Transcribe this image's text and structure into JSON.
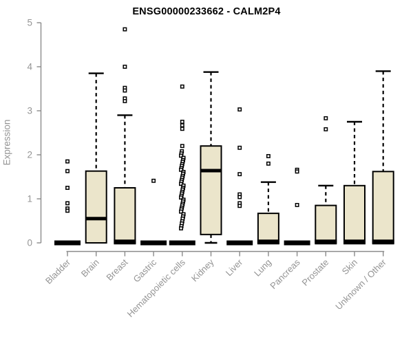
{
  "title": "ENSG00000233662 - CALM2P4",
  "y_axis": {
    "label": "Expression",
    "tick_labels": [
      "0",
      "1",
      "2",
      "3",
      "4",
      "5"
    ]
  },
  "chart_data": {
    "type": "boxplot",
    "title": "ENSG00000233662 - CALM2P4",
    "xlabel": "",
    "ylabel": "Expression",
    "ylim": [
      0,
      5
    ],
    "yticks": [
      0,
      1,
      2,
      3,
      4,
      5
    ],
    "grid": false,
    "legend": false,
    "x_tick_rotation": -45,
    "categories": [
      "Bladder",
      "Brain",
      "Breast",
      "Gastric",
      "Hematopoietic cells",
      "Kidney",
      "Liver",
      "Lung",
      "Pancreas",
      "Prostate",
      "Skin",
      "Unknown / Other"
    ],
    "boxes": [
      {
        "category": "Bladder",
        "q1": 0,
        "median": 0,
        "q3": 0,
        "whisker_low": 0,
        "whisker_high": 0,
        "outliers": [
          1.85,
          1.63,
          1.25,
          0.9,
          0.78,
          0.73
        ]
      },
      {
        "category": "Brain",
        "q1": 0,
        "median": 0.55,
        "q3": 1.63,
        "whisker_low": 0,
        "whisker_high": 3.85,
        "outliers": []
      },
      {
        "category": "Breast",
        "q1": 0,
        "median": 0.02,
        "q3": 1.25,
        "whisker_low": 0,
        "whisker_high": 2.9,
        "outliers": [
          4.85,
          4.0,
          3.52,
          3.46,
          3.28,
          3.22
        ]
      },
      {
        "category": "Gastric",
        "q1": 0,
        "median": 0,
        "q3": 0,
        "whisker_low": 0,
        "whisker_high": 0,
        "outliers": [
          1.41
        ]
      },
      {
        "category": "Hematopoietic cells",
        "q1": 0,
        "median": 0,
        "q3": 0,
        "whisker_low": 0,
        "whisker_high": 0,
        "outliers": [
          3.55,
          2.75,
          2.67,
          2.59,
          2.2,
          2.08,
          2.03,
          1.98,
          1.93,
          1.88,
          1.84,
          1.79,
          1.75,
          1.7,
          1.66,
          1.61,
          1.57,
          1.52,
          1.48,
          1.43,
          1.39,
          1.34,
          1.3,
          1.25,
          1.21,
          1.16,
          1.12,
          1.07,
          1.03,
          0.98,
          0.94,
          0.89,
          0.85,
          0.8,
          0.76,
          0.71,
          0.65,
          0.6,
          0.55,
          0.49,
          0.44,
          0.38,
          0.33
        ]
      },
      {
        "category": "Kidney",
        "q1": 0.19,
        "median": 1.64,
        "q3": 2.2,
        "whisker_low": 0,
        "whisker_high": 3.88,
        "outliers": []
      },
      {
        "category": "Liver",
        "q1": 0,
        "median": 0,
        "q3": 0,
        "whisker_low": 0,
        "whisker_high": 0,
        "outliers": [
          3.03,
          2.16,
          1.56,
          1.1,
          1.04,
          0.9,
          0.84
        ]
      },
      {
        "category": "Lung",
        "q1": 0,
        "median": 0.02,
        "q3": 0.67,
        "whisker_low": 0,
        "whisker_high": 1.38,
        "outliers": [
          1.97,
          1.8
        ]
      },
      {
        "category": "Pancreas",
        "q1": 0,
        "median": 0,
        "q3": 0,
        "whisker_low": 0,
        "whisker_high": 0,
        "outliers": [
          1.66,
          1.62,
          0.86
        ]
      },
      {
        "category": "Prostate",
        "q1": 0,
        "median": 0.02,
        "q3": 0.85,
        "whisker_low": 0,
        "whisker_high": 1.3,
        "outliers": [
          2.83,
          2.58
        ]
      },
      {
        "category": "Skin",
        "q1": 0,
        "median": 0.02,
        "q3": 1.3,
        "whisker_low": 0,
        "whisker_high": 2.75,
        "outliers": []
      },
      {
        "category": "Unknown / Other",
        "q1": 0,
        "median": 0.02,
        "q3": 1.62,
        "whisker_low": 0,
        "whisker_high": 3.9,
        "outliers": []
      }
    ],
    "style": {
      "box_fill": "#EBE5CB",
      "box_stroke": "#000000",
      "median_color": "#000000",
      "whisker_color": "#000000",
      "outlier_color": "#000000",
      "axis_color": "#8A8A8A",
      "label_color": "#949494",
      "title_color": "#000000",
      "background": "#FFFFFF"
    }
  }
}
